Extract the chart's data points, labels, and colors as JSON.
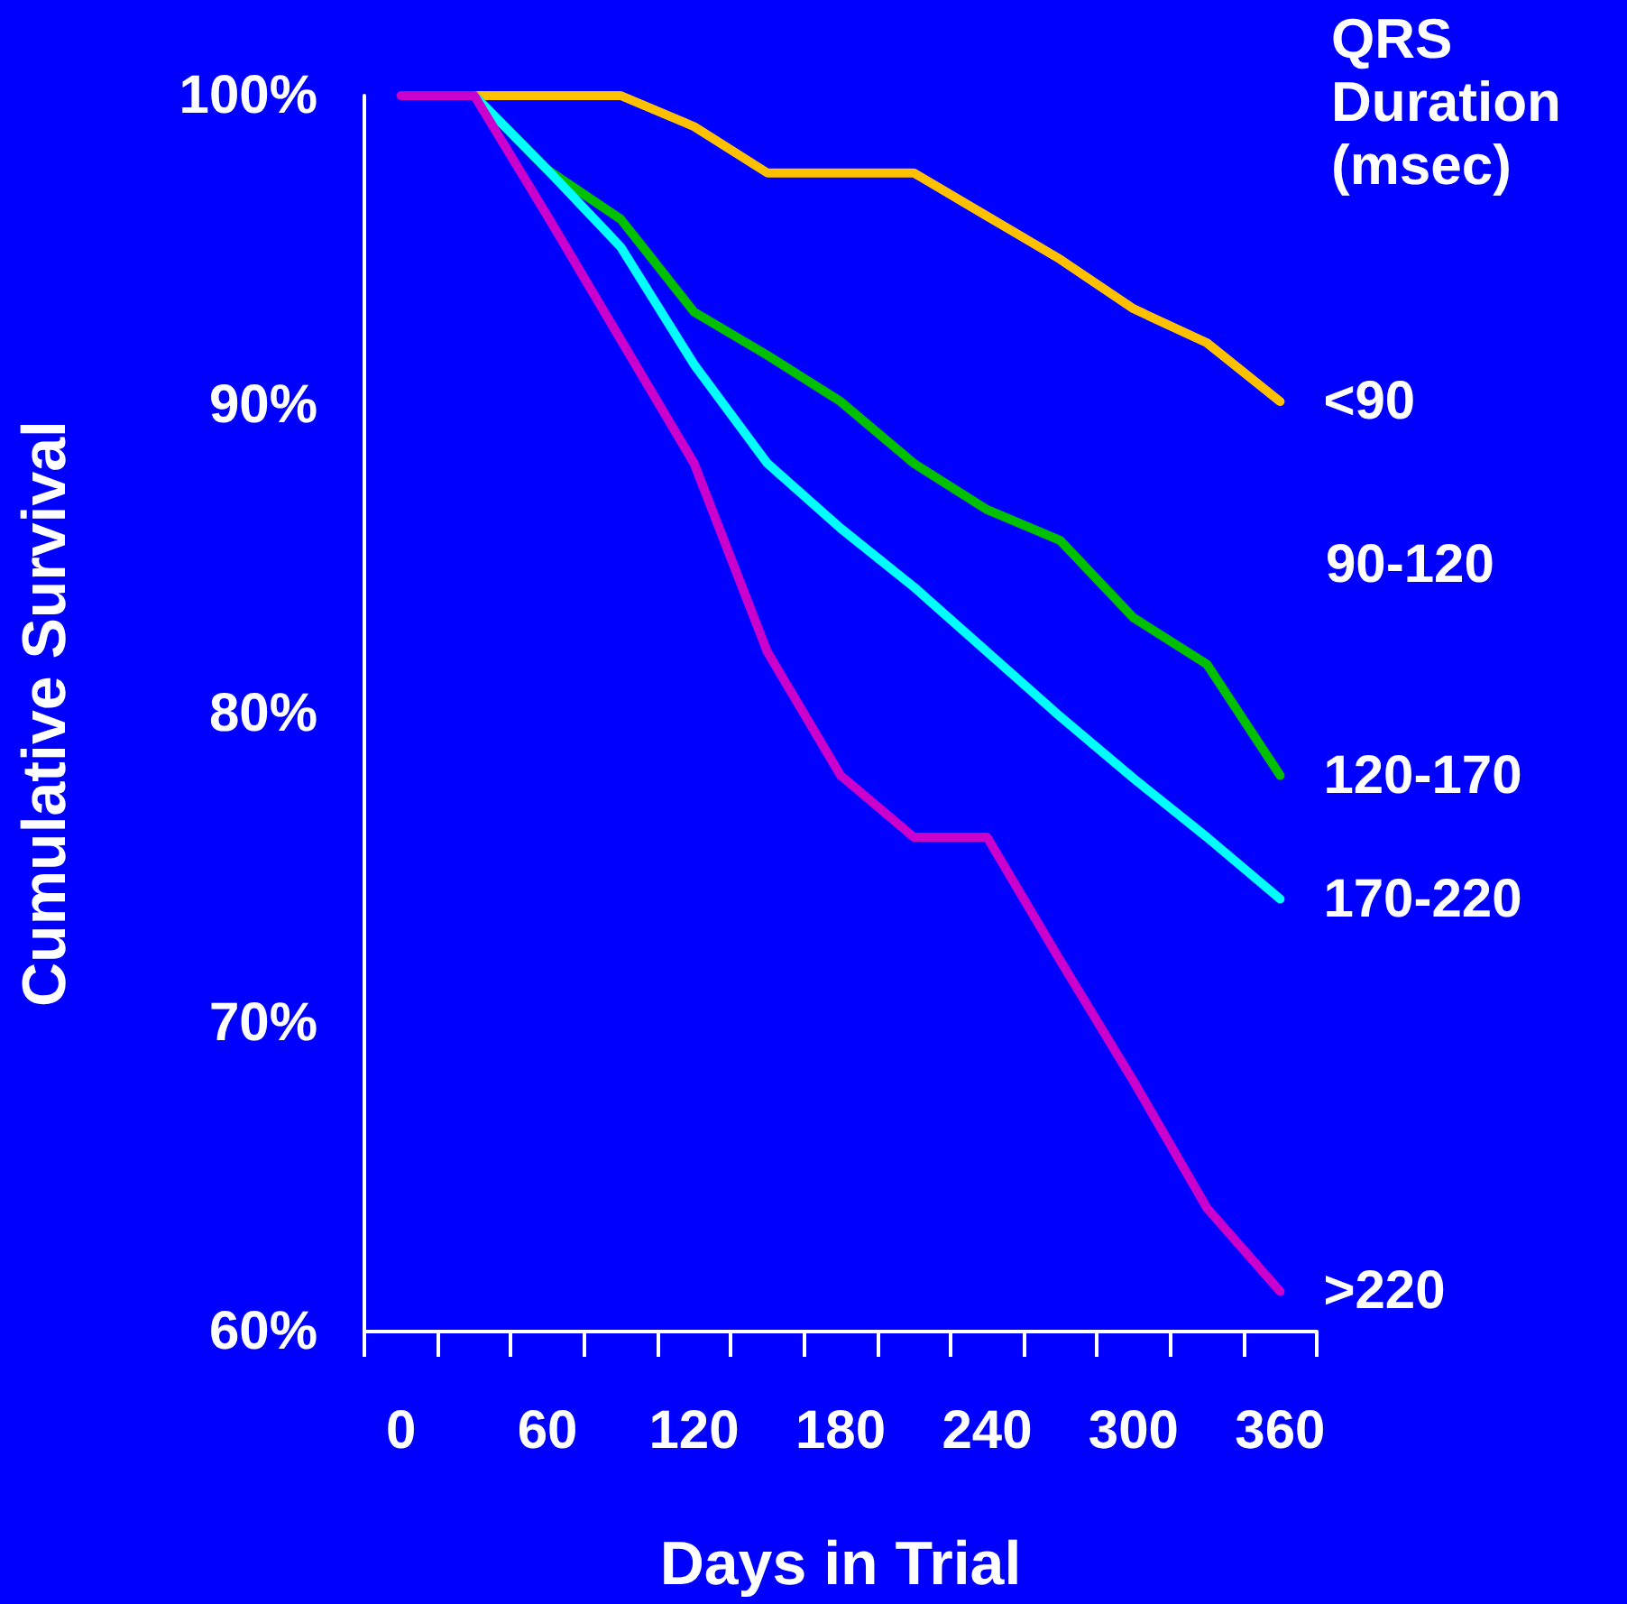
{
  "chart_data": {
    "type": "line",
    "xlabel": "Days in Trial",
    "ylabel": "Cumulative Survival",
    "legend_title": "QRS Duration (msec)",
    "categories": [
      "0",
      null,
      "60",
      null,
      "120",
      null,
      "180",
      null,
      "240",
      null,
      "300",
      null,
      "360"
    ],
    "ylim": [
      60,
      100
    ],
    "yticks": [
      {
        "value": 60,
        "label": "60%"
      },
      {
        "value": 70,
        "label": "70%"
      },
      {
        "value": 80,
        "label": "80%"
      },
      {
        "value": 90,
        "label": "90%"
      },
      {
        "value": 100,
        "label": "100%"
      }
    ],
    "series": [
      {
        "name": "<90",
        "color": "#ffc000",
        "values": [
          null,
          100,
          100,
          100,
          99.0,
          97.5,
          97.5,
          97.5,
          96.1,
          94.7,
          93.1,
          92.0,
          90.1
        ]
      },
      {
        "name": "120-170",
        "color": "#00c000",
        "values": [
          null,
          100,
          97.6,
          96.0,
          93.0,
          91.6,
          90.1,
          88.1,
          86.6,
          85.6,
          83.1,
          81.6,
          78.0
        ]
      },
      {
        "name": "170-220",
        "color": "#00ffff",
        "values": [
          null,
          100,
          97.6,
          95.1,
          91.3,
          88.1,
          86.0,
          84.1,
          82.0,
          79.9,
          77.9,
          76.0,
          74.0
        ]
      },
      {
        "name": ">220",
        "color": "#cc00cc",
        "values": [
          100,
          100,
          96.1,
          92.1,
          88.1,
          82.0,
          78.0,
          76.0,
          76.0,
          72.0,
          68.1,
          64.0,
          61.3
        ]
      }
    ],
    "annotations": [
      "90-120"
    ],
    "grid": false,
    "legend": false,
    "marker": "none",
    "line_style": "solid"
  }
}
